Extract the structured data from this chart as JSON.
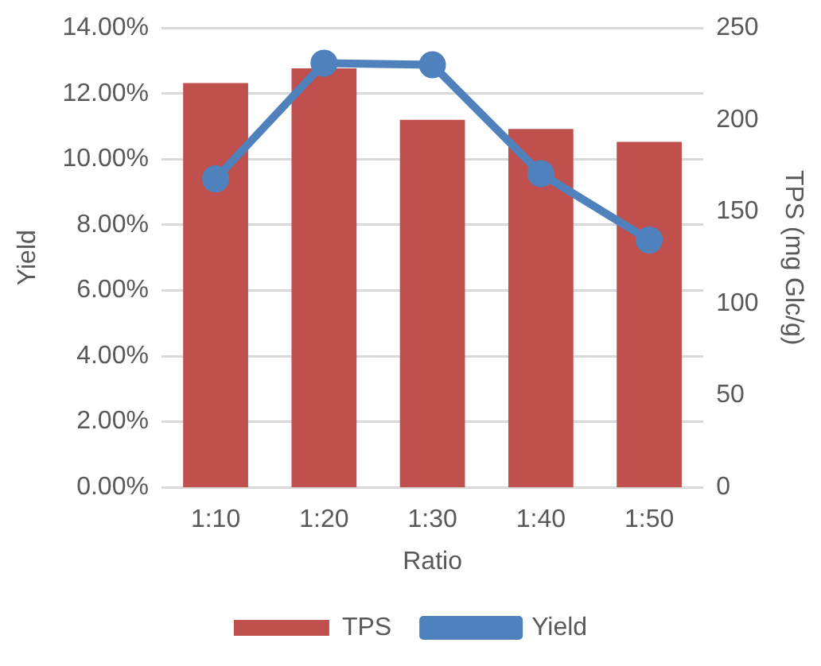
{
  "chart_data": {
    "type": "bar",
    "xlabel": "Ratio",
    "ylabel": "Yield",
    "y2label": "TPS (mg Glc/g)",
    "categories": [
      "1:10",
      "1:20",
      "1:30",
      "1:40",
      "1:50"
    ],
    "series": [
      {
        "name": "TPS",
        "axis": "y2",
        "color": "#c0504d",
        "values": [
          220,
          228,
          200,
          195,
          188
        ]
      },
      {
        "name": "Yield",
        "type": "line",
        "axis": "y",
        "color": "#4f81bd",
        "marker": "circle",
        "values": [
          9.4,
          12.93,
          12.88,
          9.56,
          7.54
        ]
      }
    ],
    "ylim": [
      0,
      14
    ],
    "yticks": [
      {
        "value": 0,
        "label": "0.00%"
      },
      {
        "value": 2,
        "label": "2.00%"
      },
      {
        "value": 4,
        "label": "4.00%"
      },
      {
        "value": 6,
        "label": "6.00%"
      },
      {
        "value": 8,
        "label": "8.00%"
      },
      {
        "value": 10,
        "label": "10.00%"
      },
      {
        "value": 12,
        "label": "12.00%"
      },
      {
        "value": 14,
        "label": "14.00%"
      }
    ],
    "y2lim": [
      0,
      250
    ],
    "y2ticks": [
      0,
      50,
      100,
      150,
      200,
      250
    ],
    "grid": "y",
    "legend": "bottom"
  }
}
